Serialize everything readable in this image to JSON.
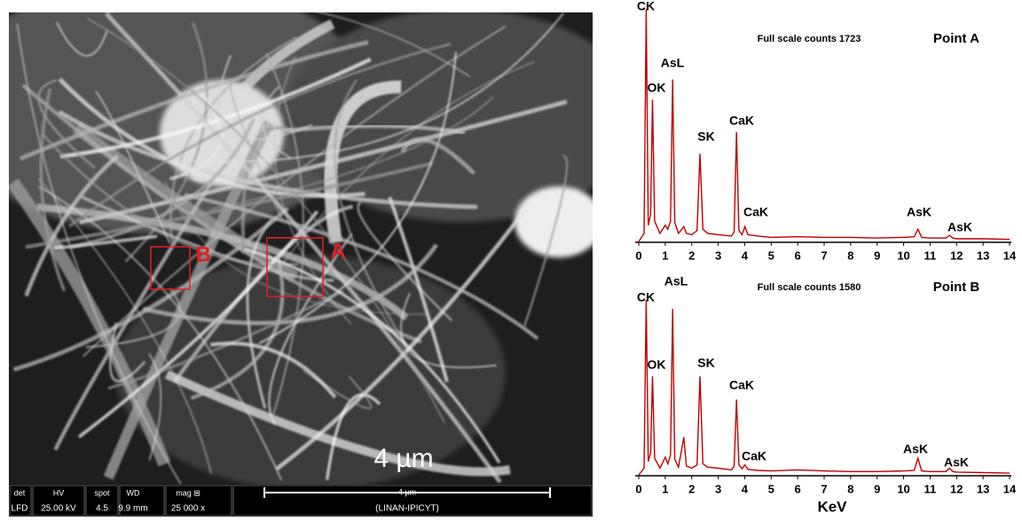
{
  "sem_image": {
    "markers": [
      "A",
      "B"
    ],
    "scale_label": "4 µm",
    "info_bar": {
      "headers": [
        "det",
        "HV",
        "spot",
        "WD",
        "mag ⊞"
      ],
      "values": [
        "LFD",
        "25.00 kV",
        "4.5",
        "9.9 mm",
        "25 000 x"
      ],
      "scale_bar_label": "4 µm",
      "operator": "(LINAN-IPICYT)"
    }
  },
  "chart_data": [
    {
      "type": "line",
      "title": "Full scale counts 1723",
      "subtitle": "Point A",
      "color": "#c00000",
      "x": [
        0,
        0.2,
        0.28,
        0.36,
        0.45,
        0.52,
        0.6,
        0.8,
        1.0,
        1.1,
        1.2,
        1.28,
        1.36,
        1.5,
        1.7,
        1.8,
        2.0,
        2.2,
        2.31,
        2.42,
        2.6,
        3.0,
        3.5,
        3.6,
        3.69,
        3.78,
        3.9,
        4.01,
        4.12,
        4.5,
        5,
        6,
        7,
        8,
        9,
        10,
        10.4,
        10.54,
        10.68,
        11,
        11.6,
        11.73,
        11.86,
        12,
        13,
        14
      ],
      "values": [
        0,
        60,
        1723,
        120,
        200,
        1050,
        150,
        60,
        120,
        90,
        150,
        1200,
        140,
        60,
        110,
        60,
        50,
        80,
        650,
        90,
        60,
        50,
        40,
        70,
        810,
        80,
        50,
        110,
        50,
        40,
        30,
        35,
        30,
        30,
        25,
        30,
        35,
        90,
        30,
        25,
        25,
        45,
        25,
        20,
        20,
        15
      ],
      "annotations": [
        "CK",
        "OK",
        "AsL",
        "SK",
        "CaK",
        "CaK",
        "AsK",
        "AsK"
      ],
      "xlim": [
        0,
        14
      ],
      "ylim": [
        0,
        1723
      ],
      "xticks": [
        0,
        1,
        2,
        3,
        4,
        5,
        6,
        7,
        8,
        9,
        10,
        11,
        12,
        13,
        14
      ]
    },
    {
      "type": "line",
      "title": "Full scale counts 1580",
      "subtitle": "Point B",
      "color": "#c00000",
      "x": [
        0,
        0.2,
        0.28,
        0.36,
        0.45,
        0.52,
        0.6,
        0.8,
        1.0,
        1.1,
        1.2,
        1.28,
        1.36,
        1.5,
        1.7,
        1.8,
        2.0,
        2.2,
        2.31,
        2.42,
        2.6,
        3.0,
        3.5,
        3.6,
        3.69,
        3.78,
        3.9,
        4.01,
        4.12,
        4.5,
        5,
        6,
        7,
        8,
        9,
        10,
        10.4,
        10.54,
        10.68,
        11,
        11.6,
        11.73,
        11.86,
        12,
        13,
        14
      ],
      "values": [
        0,
        60,
        1580,
        120,
        200,
        890,
        150,
        60,
        160,
        100,
        180,
        1500,
        140,
        70,
        340,
        80,
        60,
        90,
        890,
        100,
        70,
        60,
        45,
        80,
        680,
        90,
        55,
        90,
        50,
        40,
        35,
        45,
        35,
        30,
        30,
        35,
        40,
        150,
        35,
        30,
        30,
        60,
        30,
        25,
        20,
        15
      ],
      "annotations": [
        "CK",
        "OK",
        "AsL",
        "SK",
        "CaK",
        "CaK",
        "AsK",
        "AsK"
      ],
      "xlim": [
        0,
        14
      ],
      "ylim": [
        0,
        1580
      ],
      "xticks": [
        0,
        1,
        2,
        3,
        4,
        5,
        6,
        7,
        8,
        9,
        10,
        11,
        12,
        13,
        14
      ],
      "xlabel": "KeV"
    }
  ]
}
